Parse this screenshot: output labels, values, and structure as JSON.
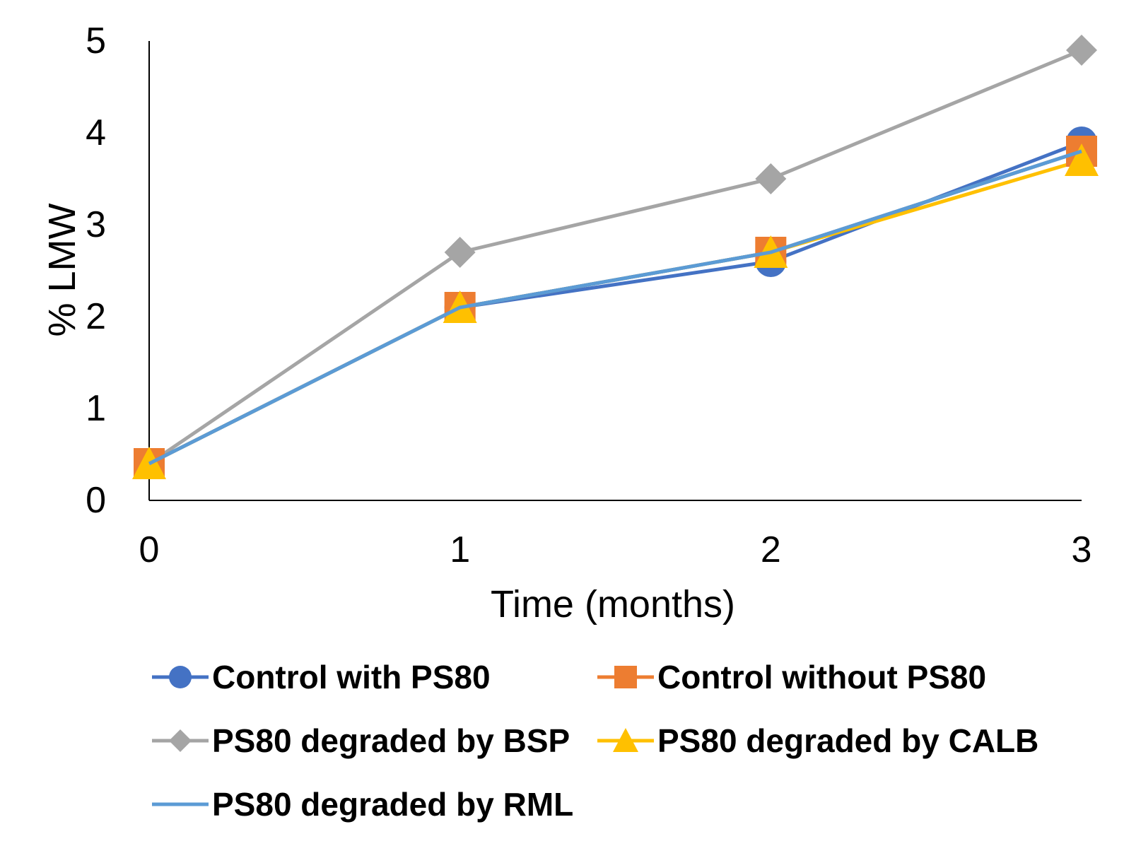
{
  "chart_data": {
    "type": "line",
    "xlabel": "Time (months)",
    "ylabel": "% LMW",
    "x": [
      0,
      1,
      2,
      3
    ],
    "xlim": [
      0,
      3
    ],
    "ylim": [
      0,
      5
    ],
    "xticks": [
      "0",
      "1",
      "2",
      "3"
    ],
    "yticks": [
      "0",
      "1",
      "2",
      "3",
      "4",
      "5"
    ],
    "grid": false,
    "legend_position": "bottom",
    "series": [
      {
        "name": "Control with PS80",
        "values": [
          0.4,
          2.1,
          2.6,
          3.9
        ],
        "color": "#4472C4",
        "marker": "circle"
      },
      {
        "name": "Control without PS80",
        "values": [
          0.4,
          2.1,
          2.7,
          3.8
        ],
        "color": "#ED7D31",
        "marker": "square"
      },
      {
        "name": "PS80 degraded by BSP",
        "values": [
          0.4,
          2.7,
          3.5,
          4.9
        ],
        "color": "#A5A5A5",
        "marker": "diamond"
      },
      {
        "name": "PS80 degraded by CALB",
        "values": [
          0.4,
          2.1,
          2.7,
          3.7
        ],
        "color": "#FFC000",
        "marker": "triangle"
      },
      {
        "name": "PS80 degraded by RML",
        "values": [
          0.4,
          2.1,
          2.7,
          3.8
        ],
        "color": "#5B9BD5",
        "marker": "none"
      }
    ]
  }
}
